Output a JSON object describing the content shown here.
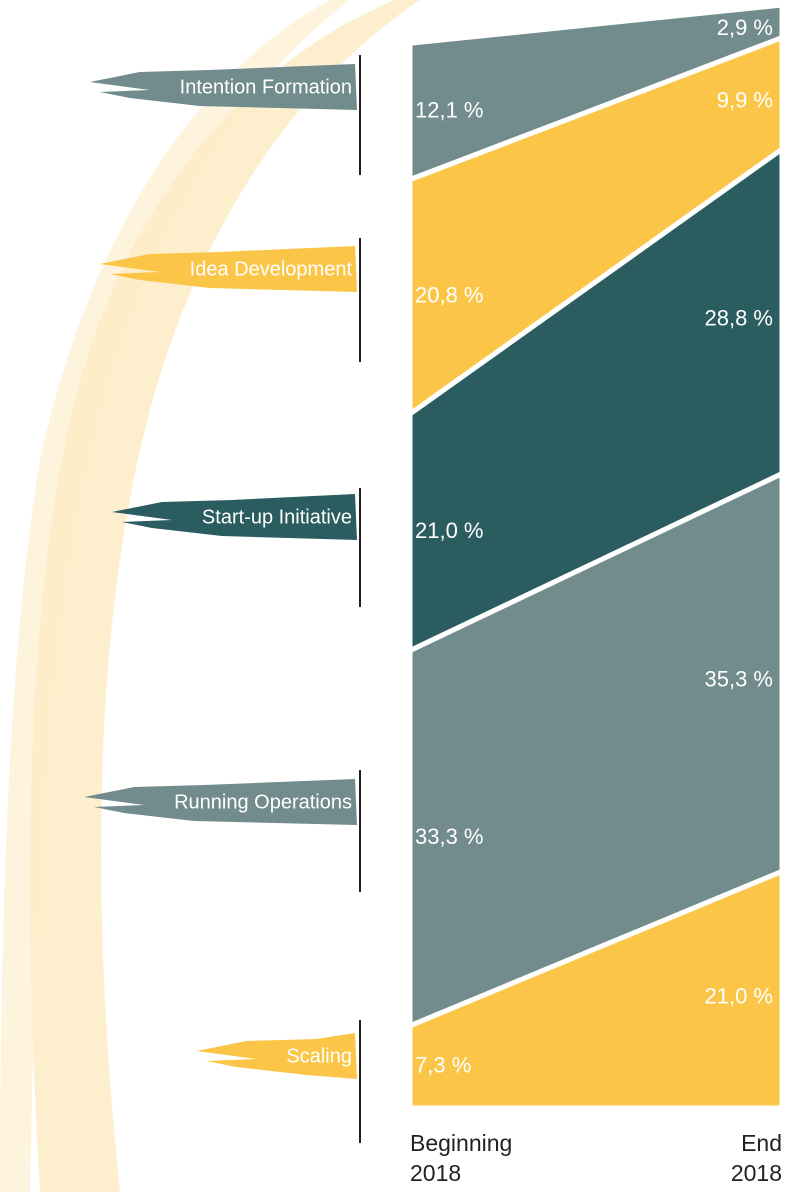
{
  "chart_data": {
    "type": "area",
    "categories": [
      "Beginning 2018",
      "End 2018"
    ],
    "series": [
      {
        "name": "Intention Formation",
        "color": "#728b8c",
        "values": [
          12.1,
          2.9
        ],
        "value_labels": [
          "12,1 %",
          "2,9 %"
        ]
      },
      {
        "name": "Idea Development",
        "color": "#fbc548",
        "values": [
          20.8,
          9.9
        ],
        "value_labels": [
          "20,8 %",
          "9,9 %"
        ]
      },
      {
        "name": "Start-up Initiative",
        "color": "#2b5d60",
        "values": [
          21.0,
          28.8
        ],
        "value_labels": [
          "21,0 %",
          "28,8 %"
        ]
      },
      {
        "name": "Running Operations",
        "color": "#728b8c",
        "values": [
          33.3,
          35.3
        ],
        "value_labels": [
          "33,3 %",
          "35,3 %"
        ]
      },
      {
        "name": "Scaling",
        "color": "#fbc548",
        "values": [
          7.3,
          21.0
        ],
        "value_labels": [
          "7,3 %",
          "21,0 %"
        ]
      }
    ]
  }
}
